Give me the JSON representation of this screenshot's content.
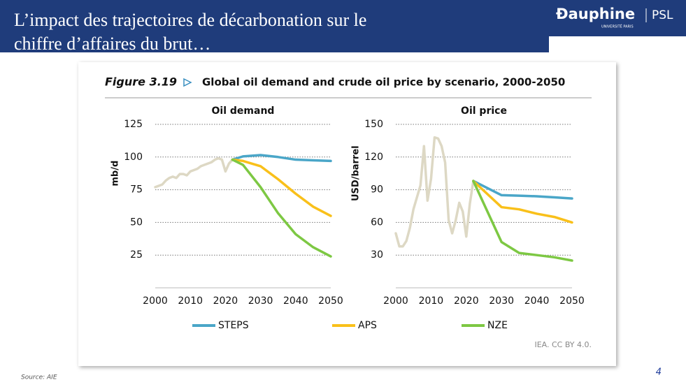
{
  "slide": {
    "title_lines": [
      "L’impact des trajectoires de décarbonation sur le",
      "chiffre d’affaires du brut…"
    ],
    "logo": "Ðauphine",
    "logo_sub": "UNIVERSITÉ PARIS",
    "logo_psl": "PSL",
    "source": "Source: AIE",
    "page_number": "4"
  },
  "figure": {
    "label": "Figure 3.19",
    "title": "Global oil demand and crude oil price by scenario, 2000-2050",
    "credit": "IEA. CC BY 4.0."
  },
  "chart_data": [
    {
      "type": "line",
      "title": "Oil demand",
      "y_label": "mb/d",
      "xlim": [
        2000,
        2050
      ],
      "xticks": [
        2000,
        2010,
        2020,
        2030,
        2040,
        2050
      ],
      "ylim": [
        0,
        125
      ],
      "yticks": [
        25,
        50,
        75,
        100,
        125
      ],
      "grid": true,
      "series": [
        {
          "color": "#ddd8c4",
          "x": [
            2000,
            2001,
            2002,
            2003,
            2004,
            2005,
            2006,
            2007,
            2008,
            2009,
            2010,
            2011,
            2012,
            2013,
            2014,
            2015,
            2016,
            2017,
            2018,
            2019,
            2020,
            2021,
            2022
          ],
          "values": [
            77,
            78,
            79,
            82,
            84,
            85,
            84,
            87,
            87,
            86,
            89,
            90,
            91,
            93,
            94,
            95,
            96,
            98,
            99,
            98,
            89,
            95,
            98
          ]
        },
        {
          "name": "STEPS",
          "color": "#4aa6c8",
          "x": [
            2022,
            2025,
            2030,
            2035,
            2040,
            2045,
            2050
          ],
          "values": [
            98,
            100.5,
            101.5,
            100,
            98,
            97.5,
            97
          ]
        },
        {
          "name": "APS",
          "color": "#f9c01a",
          "x": [
            2022,
            2025,
            2030,
            2035,
            2040,
            2045,
            2050
          ],
          "values": [
            98,
            97,
            93,
            83,
            72,
            62,
            55
          ]
        },
        {
          "name": "NZE",
          "color": "#7dc843",
          "x": [
            2022,
            2025,
            2030,
            2035,
            2040,
            2045,
            2050
          ],
          "values": [
            98,
            94,
            77,
            57,
            41,
            31,
            24
          ]
        }
      ]
    },
    {
      "type": "line",
      "title": "Oil price",
      "y_label": "USD/barrel",
      "xlim": [
        2000,
        2050
      ],
      "xticks": [
        2000,
        2010,
        2020,
        2030,
        2040,
        2050
      ],
      "ylim": [
        0,
        150
      ],
      "yticks": [
        30,
        60,
        90,
        120,
        150
      ],
      "grid": true,
      "series": [
        {
          "color": "#ddd8c4",
          "x": [
            2000,
            2001,
            2002,
            2003,
            2004,
            2005,
            2006,
            2007,
            2008,
            2009,
            2010,
            2011,
            2012,
            2013,
            2014,
            2015,
            2016,
            2017,
            2018,
            2019,
            2020,
            2021,
            2022
          ],
          "values": [
            50,
            38,
            38,
            43,
            55,
            72,
            83,
            94,
            130,
            80,
            100,
            138,
            137,
            130,
            115,
            62,
            50,
            62,
            78,
            70,
            47,
            77,
            98
          ]
        },
        {
          "name": "STEPS",
          "color": "#4aa6c8",
          "x": [
            2022,
            2030,
            2035,
            2040,
            2045,
            2050
          ],
          "values": [
            98,
            85,
            84.5,
            84,
            83,
            82
          ]
        },
        {
          "name": "APS",
          "color": "#f9c01a",
          "x": [
            2022,
            2030,
            2035,
            2040,
            2045,
            2050
          ],
          "values": [
            98,
            74,
            72,
            68,
            65,
            60
          ]
        },
        {
          "name": "NZE",
          "color": "#7dc843",
          "x": [
            2022,
            2030,
            2035,
            2040,
            2045,
            2050
          ],
          "values": [
            98,
            42,
            32,
            30,
            28,
            25
          ]
        }
      ]
    }
  ]
}
